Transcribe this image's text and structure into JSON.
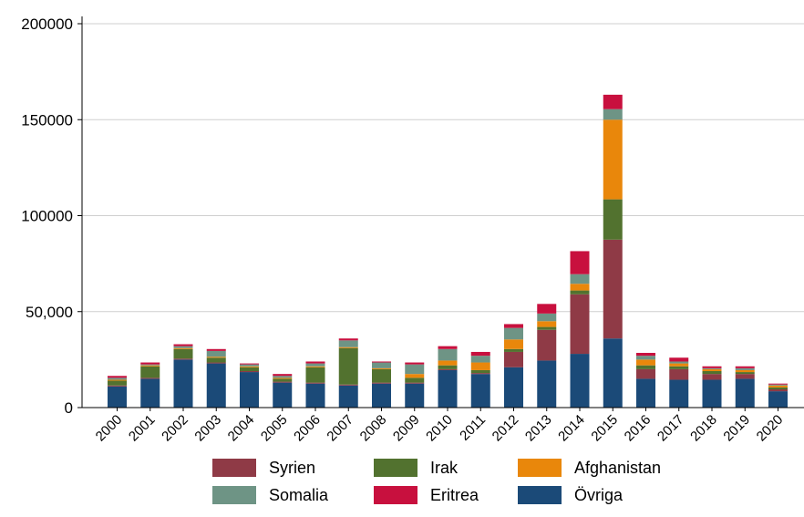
{
  "chart_data": {
    "type": "bar",
    "stacked": true,
    "title": "",
    "xlabel": "",
    "ylabel": "",
    "ylim": [
      0,
      200000
    ],
    "yticks": [
      0,
      50000,
      100000,
      150000,
      200000
    ],
    "ytick_labels": [
      "0",
      "50,000",
      "100000",
      "150000",
      "200000"
    ],
    "grid": "horizontal",
    "legend_position": "bottom",
    "categories": [
      "2000",
      "2001",
      "2002",
      "2003",
      "2004",
      "2005",
      "2006",
      "2007",
      "2008",
      "2009",
      "2010",
      "2011",
      "2012",
      "2013",
      "2014",
      "2015",
      "2016",
      "2017",
      "2018",
      "2019",
      "2020"
    ],
    "series": [
      {
        "name": "Övriga",
        "color": "#1b4a78",
        "values": [
          11000,
          15000,
          25000,
          23000,
          18500,
          13000,
          12500,
          11500,
          12500,
          12500,
          19500,
          17500,
          21000,
          24500,
          28000,
          36000,
          15000,
          14500,
          14500,
          15000,
          8500
        ]
      },
      {
        "name": "Syrien",
        "color": "#8f3a46",
        "values": [
          500,
          500,
          500,
          500,
          500,
          500,
          500,
          500,
          500,
          500,
          500,
          500,
          8000,
          16000,
          31000,
          51500,
          5000,
          5500,
          3000,
          2500,
          1000
        ]
      },
      {
        "name": "Irak",
        "color": "#52722f",
        "values": [
          2500,
          6000,
          5000,
          2500,
          2000,
          1500,
          8000,
          19000,
          7000,
          2500,
          2000,
          1500,
          1500,
          1500,
          2000,
          21000,
          2000,
          1500,
          1500,
          1000,
          1000
        ]
      },
      {
        "name": "Afghanistan",
        "color": "#e9870b",
        "values": [
          500,
          500,
          500,
          500,
          500,
          500,
          500,
          500,
          500,
          2000,
          2500,
          4000,
          5000,
          3000,
          3500,
          41500,
          3000,
          1500,
          1000,
          1000,
          1000
        ]
      },
      {
        "name": "Somalia",
        "color": "#6e9485",
        "values": [
          1000,
          500,
          1000,
          3000,
          1000,
          1000,
          1500,
          3500,
          3000,
          5000,
          6000,
          3500,
          6000,
          4000,
          5000,
          5500,
          2000,
          1000,
          500,
          1000,
          500
        ]
      },
      {
        "name": "Eritrea",
        "color": "#c8103e",
        "values": [
          1000,
          1000,
          1000,
          1000,
          500,
          1000,
          1000,
          1000,
          500,
          1000,
          1500,
          2000,
          2000,
          5000,
          12000,
          7500,
          1500,
          2000,
          1000,
          1000,
          500
        ]
      }
    ],
    "legend_order": [
      "Syrien",
      "Irak",
      "Afghanistan",
      "Somalia",
      "Eritrea",
      "Övriga"
    ]
  }
}
